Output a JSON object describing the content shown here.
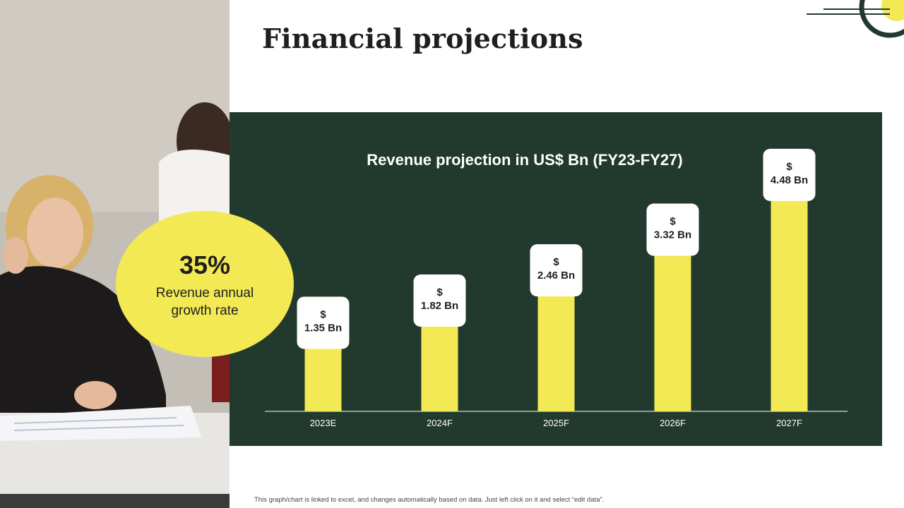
{
  "slide": {
    "title": "Financial projections",
    "footnote": "This graph/chart is linked to excel, and changes automatically based on data. Just left click on it and select “edit data”."
  },
  "highlight": {
    "value": "35%",
    "label": "Revenue annual growth rate"
  },
  "colors": {
    "panel": "#223a2d",
    "bar": "#f2e954",
    "bubble": "#f2e954",
    "accent_ring": "#223a2d"
  },
  "chart_data": {
    "type": "bar",
    "title": "Revenue projection in US$ Bn (FY23-FY27)",
    "categories": [
      "2023E",
      "2024F",
      "2025F",
      "2026F",
      "2027F"
    ],
    "values": [
      1.35,
      1.82,
      2.46,
      3.32,
      4.48
    ],
    "data_labels": [
      "$\n1.35 Bn",
      "$\n1.82 Bn",
      "$\n2.46 Bn",
      "$\n3.32 Bn",
      "$\n4.48 Bn"
    ],
    "xlabel": "",
    "ylabel": "",
    "ylim": [
      0,
      5
    ],
    "grid": false,
    "legend": "none"
  }
}
